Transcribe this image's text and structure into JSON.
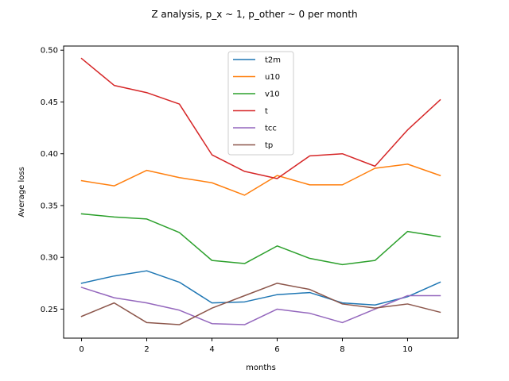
{
  "chart_data": {
    "type": "line",
    "title": "Z analysis, p_x ~ 1, p_other ~ 0 per month",
    "xlabel": "months",
    "ylabel": "Average loss",
    "xlim": [
      -0.55,
      11.55
    ],
    "ylim": [
      0.222,
      0.504
    ],
    "xticks": [
      0,
      2,
      4,
      6,
      8,
      10
    ],
    "yticks": [
      0.25,
      0.3,
      0.35,
      0.4,
      0.45,
      0.5
    ],
    "ytick_labels": [
      "0.25",
      "0.30",
      "0.35",
      "0.40",
      "0.45",
      "0.50"
    ],
    "x": [
      0,
      1,
      2,
      3,
      4,
      5,
      6,
      7,
      8,
      9,
      10,
      11
    ],
    "grid": false,
    "legend_position": "top-center",
    "series": [
      {
        "name": "t2m",
        "color": "#1f77b4",
        "values": [
          0.275,
          0.282,
          0.287,
          0.276,
          0.256,
          0.257,
          0.264,
          0.266,
          0.256,
          0.254,
          0.262,
          0.276
        ]
      },
      {
        "name": "u10",
        "color": "#ff7f0e",
        "values": [
          0.374,
          0.369,
          0.384,
          0.377,
          0.372,
          0.36,
          0.379,
          0.37,
          0.37,
          0.386,
          0.39,
          0.379
        ]
      },
      {
        "name": "v10",
        "color": "#2ca02c",
        "values": [
          0.342,
          0.339,
          0.337,
          0.324,
          0.297,
          0.294,
          0.311,
          0.299,
          0.293,
          0.297,
          0.325,
          0.32
        ]
      },
      {
        "name": "t",
        "color": "#d62728",
        "values": [
          0.492,
          0.466,
          0.459,
          0.448,
          0.399,
          0.383,
          0.376,
          0.398,
          0.4,
          0.388,
          0.423,
          0.452
        ]
      },
      {
        "name": "tcc",
        "color": "#9467bd",
        "values": [
          0.271,
          0.261,
          0.256,
          0.249,
          0.236,
          0.235,
          0.25,
          0.246,
          0.237,
          0.25,
          0.263,
          0.263
        ]
      },
      {
        "name": "tp",
        "color": "#8c564b",
        "values": [
          0.243,
          0.256,
          0.237,
          0.235,
          0.251,
          0.263,
          0.275,
          0.269,
          0.255,
          0.251,
          0.255,
          0.247
        ]
      }
    ]
  }
}
